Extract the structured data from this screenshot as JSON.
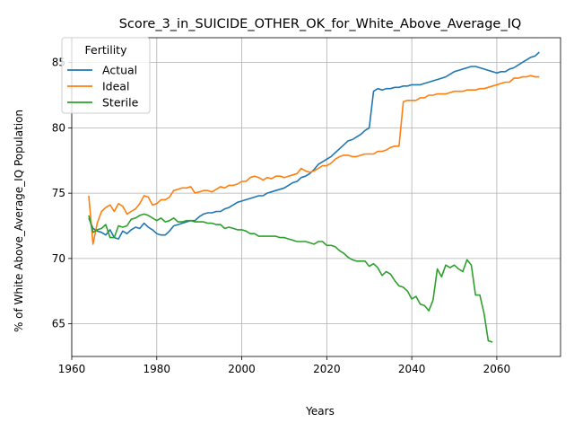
{
  "chart_data": {
    "type": "line",
    "title": "Score_3_in_SUICIDE_OTHER_OK_for_White_Above_Average_IQ",
    "xlabel": "Years",
    "ylabel": "% of White Above_Average_IQ Population",
    "xlim": [
      1960,
      2075
    ],
    "ylim": [
      62.5,
      86.9
    ],
    "xticks": [
      1960,
      1980,
      2000,
      2020,
      2040,
      2060
    ],
    "yticks": [
      65,
      70,
      75,
      80,
      85
    ],
    "grid": true,
    "legend": {
      "title": "Fertility",
      "placement": "top-left"
    },
    "series": [
      {
        "name": "Actual",
        "color": "#1f77b4",
        "points": [
          [
            1964,
            73.1
          ],
          [
            1965,
            72.3
          ],
          [
            1966,
            72.1
          ],
          [
            1967,
            72.0
          ],
          [
            1968,
            71.8
          ],
          [
            1969,
            72.2
          ],
          [
            1970,
            71.6
          ],
          [
            1971,
            71.5
          ],
          [
            1972,
            72.1
          ],
          [
            1973,
            71.9
          ],
          [
            1974,
            72.2
          ],
          [
            1975,
            72.4
          ],
          [
            1976,
            72.3
          ],
          [
            1977,
            72.7
          ],
          [
            1978,
            72.4
          ],
          [
            1979,
            72.2
          ],
          [
            1980,
            71.9
          ],
          [
            1981,
            71.8
          ],
          [
            1982,
            71.8
          ],
          [
            1983,
            72.1
          ],
          [
            1984,
            72.5
          ],
          [
            1985,
            72.6
          ],
          [
            1986,
            72.7
          ],
          [
            1987,
            72.8
          ],
          [
            1988,
            72.9
          ],
          [
            1989,
            72.9
          ],
          [
            1990,
            73.2
          ],
          [
            1991,
            73.4
          ],
          [
            1992,
            73.5
          ],
          [
            1993,
            73.5
          ],
          [
            1994,
            73.6
          ],
          [
            1995,
            73.6
          ],
          [
            1996,
            73.8
          ],
          [
            1997,
            73.9
          ],
          [
            1998,
            74.1
          ],
          [
            1999,
            74.3
          ],
          [
            2000,
            74.4
          ],
          [
            2001,
            74.5
          ],
          [
            2002,
            74.6
          ],
          [
            2003,
            74.7
          ],
          [
            2004,
            74.8
          ],
          [
            2005,
            74.8
          ],
          [
            2006,
            75.0
          ],
          [
            2007,
            75.1
          ],
          [
            2008,
            75.2
          ],
          [
            2009,
            75.3
          ],
          [
            2010,
            75.4
          ],
          [
            2011,
            75.6
          ],
          [
            2012,
            75.8
          ],
          [
            2013,
            75.9
          ],
          [
            2014,
            76.2
          ],
          [
            2015,
            76.3
          ],
          [
            2016,
            76.5
          ],
          [
            2017,
            76.8
          ],
          [
            2018,
            77.2
          ],
          [
            2019,
            77.4
          ],
          [
            2020,
            77.6
          ],
          [
            2021,
            77.8
          ],
          [
            2022,
            78.1
          ],
          [
            2023,
            78.4
          ],
          [
            2024,
            78.7
          ],
          [
            2025,
            79.0
          ],
          [
            2026,
            79.1
          ],
          [
            2027,
            79.3
          ],
          [
            2028,
            79.5
          ],
          [
            2029,
            79.8
          ],
          [
            2030,
            80.0
          ],
          [
            2031,
            82.8
          ],
          [
            2032,
            83.0
          ],
          [
            2033,
            82.9
          ],
          [
            2034,
            83.0
          ],
          [
            2035,
            83.0
          ],
          [
            2036,
            83.1
          ],
          [
            2037,
            83.1
          ],
          [
            2038,
            83.2
          ],
          [
            2039,
            83.2
          ],
          [
            2040,
            83.3
          ],
          [
            2041,
            83.3
          ],
          [
            2042,
            83.3
          ],
          [
            2043,
            83.4
          ],
          [
            2044,
            83.5
          ],
          [
            2045,
            83.6
          ],
          [
            2046,
            83.7
          ],
          [
            2047,
            83.8
          ],
          [
            2048,
            83.9
          ],
          [
            2049,
            84.1
          ],
          [
            2050,
            84.3
          ],
          [
            2051,
            84.4
          ],
          [
            2052,
            84.5
          ],
          [
            2053,
            84.6
          ],
          [
            2054,
            84.7
          ],
          [
            2055,
            84.7
          ],
          [
            2056,
            84.6
          ],
          [
            2057,
            84.5
          ],
          [
            2058,
            84.4
          ],
          [
            2059,
            84.3
          ],
          [
            2060,
            84.2
          ],
          [
            2061,
            84.3
          ],
          [
            2062,
            84.3
          ],
          [
            2063,
            84.5
          ],
          [
            2064,
            84.6
          ],
          [
            2065,
            84.8
          ],
          [
            2066,
            85.0
          ],
          [
            2067,
            85.2
          ],
          [
            2068,
            85.4
          ],
          [
            2069,
            85.5
          ],
          [
            2070,
            85.8
          ]
        ]
      },
      {
        "name": "Ideal",
        "color": "#ff7f0e",
        "points": [
          [
            1964,
            74.8
          ],
          [
            1965,
            71.1
          ],
          [
            1966,
            72.7
          ],
          [
            1967,
            73.6
          ],
          [
            1968,
            73.9
          ],
          [
            1969,
            74.1
          ],
          [
            1970,
            73.6
          ],
          [
            1971,
            74.2
          ],
          [
            1972,
            74.0
          ],
          [
            1973,
            73.4
          ],
          [
            1974,
            73.6
          ],
          [
            1975,
            73.8
          ],
          [
            1976,
            74.2
          ],
          [
            1977,
            74.8
          ],
          [
            1978,
            74.7
          ],
          [
            1979,
            74.1
          ],
          [
            1980,
            74.2
          ],
          [
            1981,
            74.5
          ],
          [
            1982,
            74.5
          ],
          [
            1983,
            74.7
          ],
          [
            1984,
            75.2
          ],
          [
            1985,
            75.3
          ],
          [
            1986,
            75.4
          ],
          [
            1987,
            75.4
          ],
          [
            1988,
            75.5
          ],
          [
            1989,
            75.0
          ],
          [
            1990,
            75.1
          ],
          [
            1991,
            75.2
          ],
          [
            1992,
            75.2
          ],
          [
            1993,
            75.1
          ],
          [
            1994,
            75.3
          ],
          [
            1995,
            75.5
          ],
          [
            1996,
            75.4
          ],
          [
            1997,
            75.6
          ],
          [
            1998,
            75.6
          ],
          [
            1999,
            75.7
          ],
          [
            2000,
            75.9
          ],
          [
            2001,
            75.9
          ],
          [
            2002,
            76.2
          ],
          [
            2003,
            76.3
          ],
          [
            2004,
            76.2
          ],
          [
            2005,
            76.0
          ],
          [
            2006,
            76.2
          ],
          [
            2007,
            76.1
          ],
          [
            2008,
            76.3
          ],
          [
            2009,
            76.3
          ],
          [
            2010,
            76.2
          ],
          [
            2011,
            76.3
          ],
          [
            2012,
            76.4
          ],
          [
            2013,
            76.5
          ],
          [
            2014,
            76.9
          ],
          [
            2015,
            76.7
          ],
          [
            2016,
            76.6
          ],
          [
            2017,
            76.7
          ],
          [
            2018,
            76.9
          ],
          [
            2019,
            77.1
          ],
          [
            2020,
            77.1
          ],
          [
            2021,
            77.3
          ],
          [
            2022,
            77.6
          ],
          [
            2023,
            77.8
          ],
          [
            2024,
            77.9
          ],
          [
            2025,
            77.9
          ],
          [
            2026,
            77.8
          ],
          [
            2027,
            77.8
          ],
          [
            2028,
            77.9
          ],
          [
            2029,
            78.0
          ],
          [
            2030,
            78.0
          ],
          [
            2031,
            78.0
          ],
          [
            2032,
            78.2
          ],
          [
            2033,
            78.2
          ],
          [
            2034,
            78.3
          ],
          [
            2035,
            78.5
          ],
          [
            2036,
            78.6
          ],
          [
            2037,
            78.6
          ],
          [
            2038,
            82.0
          ],
          [
            2039,
            82.1
          ],
          [
            2040,
            82.1
          ],
          [
            2041,
            82.1
          ],
          [
            2042,
            82.3
          ],
          [
            2043,
            82.3
          ],
          [
            2044,
            82.5
          ],
          [
            2045,
            82.5
          ],
          [
            2046,
            82.6
          ],
          [
            2047,
            82.6
          ],
          [
            2048,
            82.6
          ],
          [
            2049,
            82.7
          ],
          [
            2050,
            82.8
          ],
          [
            2051,
            82.8
          ],
          [
            2052,
            82.8
          ],
          [
            2053,
            82.9
          ],
          [
            2054,
            82.9
          ],
          [
            2055,
            82.9
          ],
          [
            2056,
            83.0
          ],
          [
            2057,
            83.0
          ],
          [
            2058,
            83.1
          ],
          [
            2059,
            83.2
          ],
          [
            2060,
            83.3
          ],
          [
            2061,
            83.4
          ],
          [
            2062,
            83.5
          ],
          [
            2063,
            83.5
          ],
          [
            2064,
            83.8
          ],
          [
            2065,
            83.8
          ],
          [
            2066,
            83.9
          ],
          [
            2067,
            83.9
          ],
          [
            2068,
            84.0
          ],
          [
            2069,
            83.9
          ],
          [
            2070,
            83.9
          ]
        ]
      },
      {
        "name": "Sterile",
        "color": "#2ca02c",
        "points": [
          [
            1964,
            73.3
          ],
          [
            1965,
            72.0
          ],
          [
            1966,
            72.2
          ],
          [
            1967,
            72.3
          ],
          [
            1968,
            72.6
          ],
          [
            1969,
            71.6
          ],
          [
            1970,
            71.6
          ],
          [
            1971,
            72.5
          ],
          [
            1972,
            72.4
          ],
          [
            1973,
            72.5
          ],
          [
            1974,
            73.0
          ],
          [
            1975,
            73.1
          ],
          [
            1976,
            73.3
          ],
          [
            1977,
            73.4
          ],
          [
            1978,
            73.3
          ],
          [
            1979,
            73.1
          ],
          [
            1980,
            72.9
          ],
          [
            1981,
            73.1
          ],
          [
            1982,
            72.8
          ],
          [
            1983,
            72.9
          ],
          [
            1984,
            73.1
          ],
          [
            1985,
            72.8
          ],
          [
            1986,
            72.8
          ],
          [
            1987,
            72.9
          ],
          [
            1988,
            72.9
          ],
          [
            1989,
            72.8
          ],
          [
            1990,
            72.8
          ],
          [
            1991,
            72.8
          ],
          [
            1992,
            72.7
          ],
          [
            1993,
            72.7
          ],
          [
            1994,
            72.6
          ],
          [
            1995,
            72.6
          ],
          [
            1996,
            72.3
          ],
          [
            1997,
            72.4
          ],
          [
            1998,
            72.3
          ],
          [
            1999,
            72.2
          ],
          [
            2000,
            72.2
          ],
          [
            2001,
            72.1
          ],
          [
            2002,
            71.9
          ],
          [
            2003,
            71.9
          ],
          [
            2004,
            71.7
          ],
          [
            2005,
            71.7
          ],
          [
            2006,
            71.7
          ],
          [
            2007,
            71.7
          ],
          [
            2008,
            71.7
          ],
          [
            2009,
            71.6
          ],
          [
            2010,
            71.6
          ],
          [
            2011,
            71.5
          ],
          [
            2012,
            71.4
          ],
          [
            2013,
            71.3
          ],
          [
            2014,
            71.3
          ],
          [
            2015,
            71.3
          ],
          [
            2016,
            71.2
          ],
          [
            2017,
            71.1
          ],
          [
            2018,
            71.3
          ],
          [
            2019,
            71.3
          ],
          [
            2020,
            71.0
          ],
          [
            2021,
            71.0
          ],
          [
            2022,
            70.9
          ],
          [
            2023,
            70.6
          ],
          [
            2024,
            70.4
          ],
          [
            2025,
            70.1
          ],
          [
            2026,
            69.9
          ],
          [
            2027,
            69.8
          ],
          [
            2028,
            69.8
          ],
          [
            2029,
            69.8
          ],
          [
            2030,
            69.4
          ],
          [
            2031,
            69.6
          ],
          [
            2032,
            69.3
          ],
          [
            2033,
            68.7
          ],
          [
            2034,
            69.0
          ],
          [
            2035,
            68.8
          ],
          [
            2036,
            68.3
          ],
          [
            2037,
            67.9
          ],
          [
            2038,
            67.8
          ],
          [
            2039,
            67.5
          ],
          [
            2040,
            66.9
          ],
          [
            2041,
            67.1
          ],
          [
            2042,
            66.5
          ],
          [
            2043,
            66.4
          ],
          [
            2044,
            66.0
          ],
          [
            2045,
            66.8
          ],
          [
            2046,
            69.2
          ],
          [
            2047,
            68.6
          ],
          [
            2048,
            69.5
          ],
          [
            2049,
            69.3
          ],
          [
            2050,
            69.5
          ],
          [
            2051,
            69.2
          ],
          [
            2052,
            69.0
          ],
          [
            2053,
            69.9
          ],
          [
            2054,
            69.5
          ],
          [
            2055,
            67.2
          ],
          [
            2056,
            67.2
          ],
          [
            2057,
            65.8
          ],
          [
            2058,
            63.7
          ],
          [
            2059,
            63.6
          ]
        ]
      }
    ]
  }
}
